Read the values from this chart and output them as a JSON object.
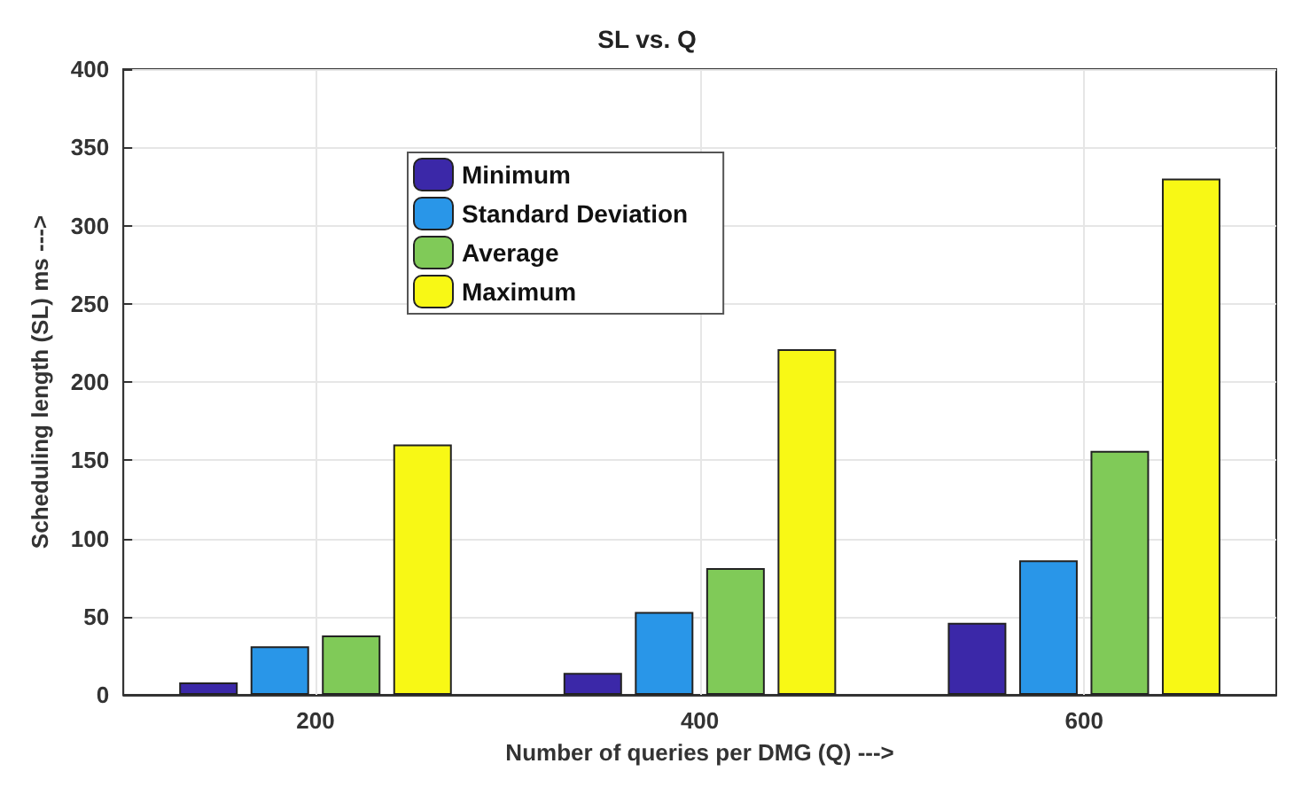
{
  "chart_data": {
    "type": "bar",
    "title": "SL vs. Q",
    "xlabel": "Number of queries per DMG (Q) --->",
    "ylabel": "Scheduling length (SL) ms --->",
    "categories": [
      "200",
      "400",
      "600"
    ],
    "series": [
      {
        "name": "Minimum",
        "color": "#3b28a8",
        "values": [
          8,
          14,
          46
        ]
      },
      {
        "name": "Standard Deviation",
        "color": "#2996e8",
        "values": [
          31,
          53,
          86
        ]
      },
      {
        "name": "Average",
        "color": "#80ca58",
        "values": [
          38,
          81,
          156
        ]
      },
      {
        "name": "Maximum",
        "color": "#f8f815",
        "values": [
          160,
          221,
          330
        ]
      }
    ],
    "ylim": [
      0,
      400
    ],
    "yticks": [
      0,
      50,
      100,
      150,
      200,
      250,
      300,
      350,
      400
    ],
    "grid": true,
    "legend": "top left"
  }
}
